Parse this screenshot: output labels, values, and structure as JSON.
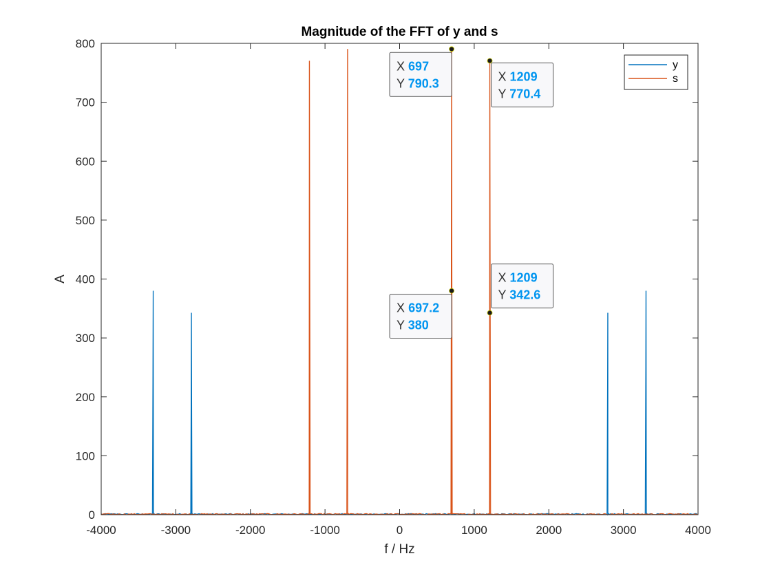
{
  "chart_data": {
    "type": "line",
    "title": "Magnitude of the FFT of y and s",
    "xlabel": "f / Hz",
    "ylabel": "A",
    "xlim": [
      -4000,
      4000
    ],
    "ylim": [
      0,
      800
    ],
    "xticks": [
      -4000,
      -3000,
      -2000,
      -1000,
      0,
      1000,
      2000,
      3000,
      4000
    ],
    "yticks": [
      0,
      100,
      200,
      300,
      400,
      500,
      600,
      700,
      800
    ],
    "grid": false,
    "legend_position": "top-right",
    "noise_floor": 2,
    "series": [
      {
        "name": "y",
        "color": "#0072bd",
        "peaks": [
          {
            "x": -3303,
            "y": 380
          },
          {
            "x": -2791,
            "y": 342.6
          },
          {
            "x": 2791,
            "y": 342.6
          },
          {
            "x": 3303,
            "y": 380
          }
        ]
      },
      {
        "name": "s",
        "color": "#d95319",
        "peaks": [
          {
            "x": -1209,
            "y": 770.4
          },
          {
            "x": -697,
            "y": 790.3
          },
          {
            "x": 697,
            "y": 790.3
          },
          {
            "x": 1209,
            "y": 770.4
          }
        ]
      }
    ],
    "datatips": [
      {
        "x_label": "X",
        "x_value": "697",
        "y_label": "Y",
        "y_value": "790.3",
        "point": {
          "x": 697,
          "y": 790.3
        },
        "placement": "below-left"
      },
      {
        "x_label": "X",
        "x_value": "1209",
        "y_label": "Y",
        "y_value": "770.4",
        "point": {
          "x": 1209,
          "y": 770.4
        },
        "placement": "below-right"
      },
      {
        "x_label": "X",
        "x_value": "697.2",
        "y_label": "Y",
        "y_value": "380",
        "point": {
          "x": 697.2,
          "y": 380
        },
        "placement": "below-left"
      },
      {
        "x_label": "X",
        "x_value": "1209",
        "y_label": "Y",
        "y_value": "342.6",
        "point": {
          "x": 1209,
          "y": 342.6
        },
        "placement": "above-right"
      }
    ]
  }
}
